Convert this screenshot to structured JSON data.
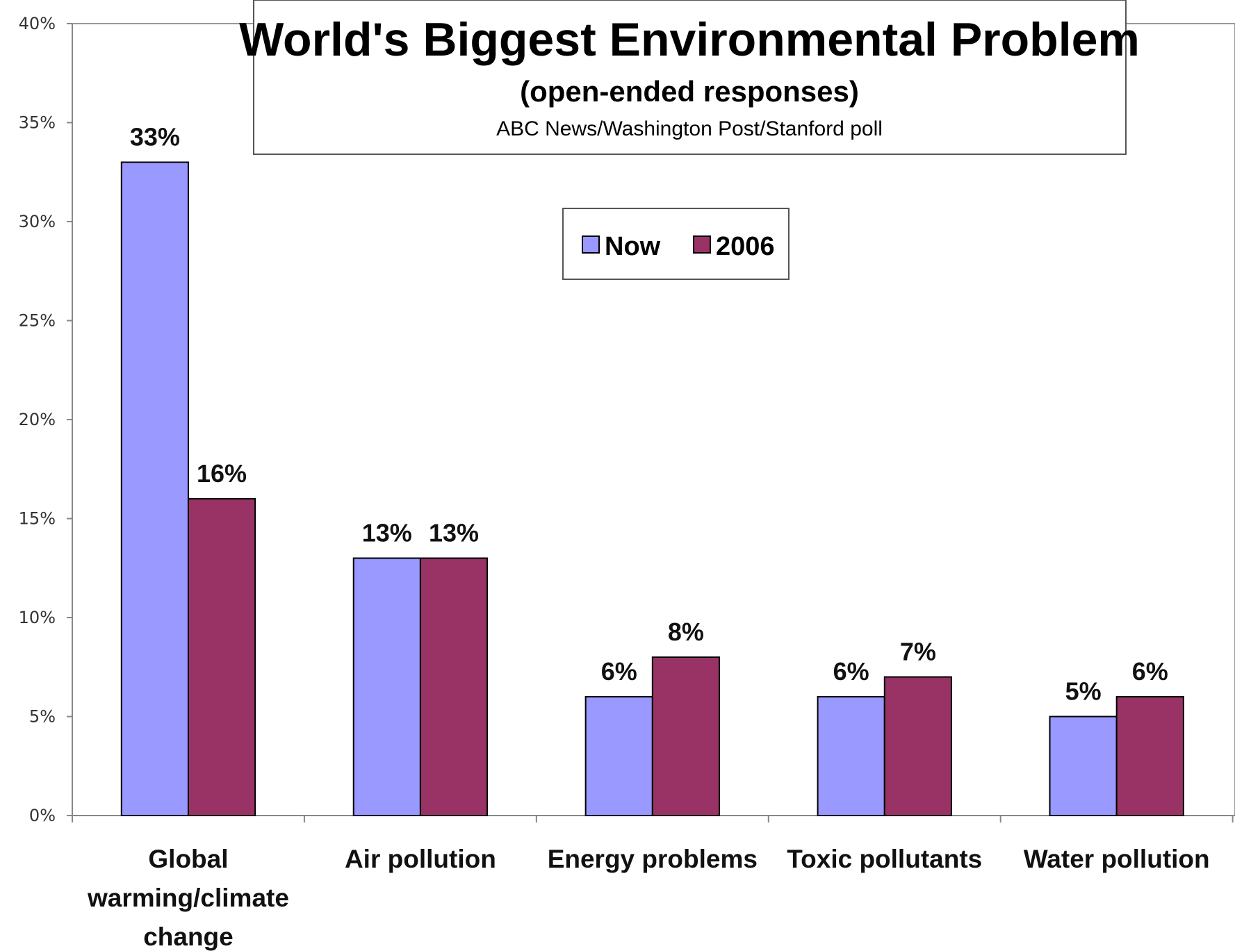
{
  "chart_data": {
    "type": "bar",
    "title": "World's Biggest Environmental Problem",
    "subtitle": "(open-ended responses)",
    "source": "ABC News/Washington Post/Stanford poll",
    "categories": [
      [
        "Global",
        "warming/climate",
        "change"
      ],
      [
        "Air pollution"
      ],
      [
        "Energy problems"
      ],
      [
        "Toxic pollutants"
      ],
      [
        "Water pollution"
      ]
    ],
    "series": [
      {
        "name": "Now",
        "values": [
          33,
          13,
          6,
          6,
          5
        ],
        "labels": [
          "33%",
          "13%",
          "6%",
          "6%",
          "5%"
        ],
        "color": "#9999ff"
      },
      {
        "name": "2006",
        "values": [
          16,
          13,
          8,
          7,
          6
        ],
        "labels": [
          "16%",
          "13%",
          "8%",
          "7%",
          "6%"
        ],
        "color": "#993366"
      }
    ],
    "ylim": [
      0,
      40
    ],
    "yticks": [
      "0%",
      "5%",
      "10%",
      "15%",
      "20%",
      "25%",
      "30%",
      "35%",
      "40%"
    ],
    "legend_position": "top-center",
    "grid": false
  }
}
